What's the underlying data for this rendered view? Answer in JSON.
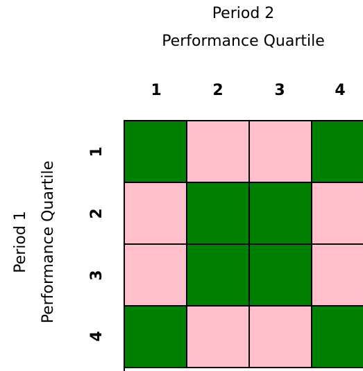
{
  "titles": {
    "top_line1": "Period 2",
    "top_line2": "Performance Quartile",
    "side_line1": "Period 1",
    "side_line2": "Performance Quartile"
  },
  "columns": [
    "1",
    "2",
    "3",
    "4"
  ],
  "rows": [
    "1",
    "2",
    "3",
    "4"
  ],
  "colors": {
    "match": "#008000",
    "mismatch": "#ffc0cb"
  },
  "grid": [
    [
      "match",
      "mismatch",
      "mismatch",
      "match"
    ],
    [
      "mismatch",
      "match",
      "match",
      "mismatch"
    ],
    [
      "mismatch",
      "match",
      "match",
      "mismatch"
    ],
    [
      "match",
      "mismatch",
      "mismatch",
      "match"
    ]
  ]
}
